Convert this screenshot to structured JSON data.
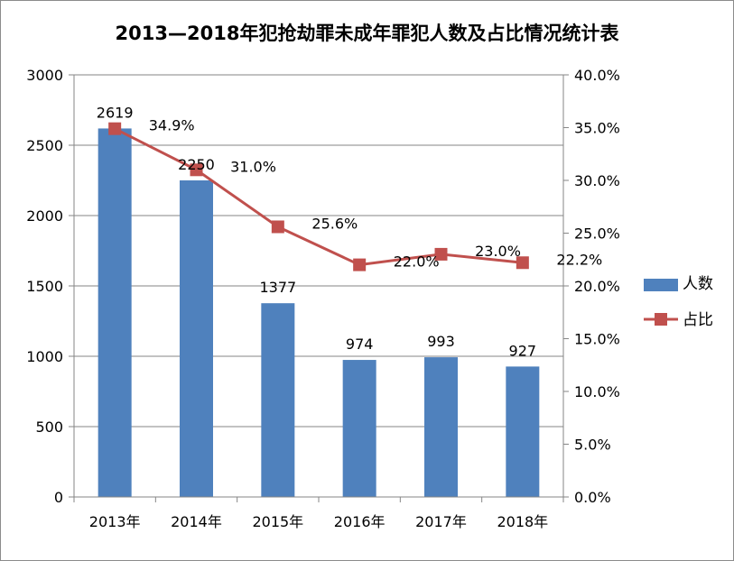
{
  "chart_data": {
    "type": "bar+line",
    "title": "2013—2018年犯抢劫罪未成年罪犯人数及占比情况统计表",
    "categories": [
      "2013年",
      "2014年",
      "2015年",
      "2016年",
      "2017年",
      "2018年"
    ],
    "series": [
      {
        "name": "人数",
        "type": "bar",
        "axis": "left",
        "color": "#4f81bd",
        "values": [
          2619,
          2250,
          1377,
          974,
          993,
          927
        ],
        "labels": [
          "2619",
          "2250",
          "1377",
          "974",
          "993",
          "927"
        ]
      },
      {
        "name": "占比",
        "type": "line",
        "axis": "right",
        "color": "#c0504d",
        "values": [
          34.9,
          31.0,
          25.6,
          22.0,
          23.0,
          22.2
        ],
        "labels": [
          "34.9%",
          "31.0%",
          "25.6%",
          "22.0%",
          "23.0%",
          "22.2%"
        ]
      }
    ],
    "y_left": {
      "min": 0,
      "max": 3000,
      "ticks": [
        "0",
        "500",
        "1000",
        "1500",
        "2000",
        "2500",
        "3000"
      ]
    },
    "y_right": {
      "min": 0,
      "max": 40,
      "ticks": [
        "0.0%",
        "5.0%",
        "10.0%",
        "15.0%",
        "20.0%",
        "25.0%",
        "30.0%",
        "35.0%",
        "40.0%"
      ]
    },
    "grid": true,
    "legend_position": "right"
  }
}
